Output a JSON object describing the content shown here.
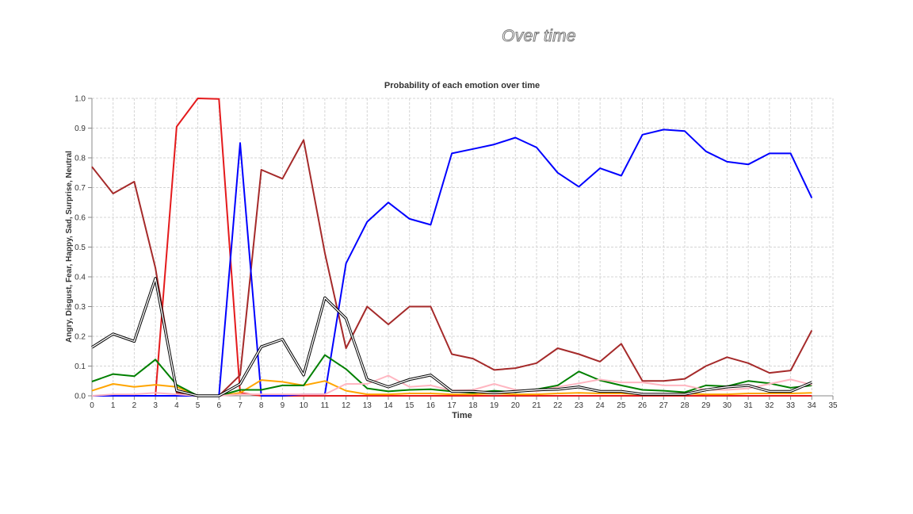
{
  "page": {
    "heading": "Over time"
  },
  "chart_data": {
    "type": "line",
    "title": "Probability of each emotion over time",
    "xlabel": "Time",
    "ylabel": "Angry, Disgust, Fear, Happy, Sad, Surprise, Neutral",
    "xlim": [
      0,
      35
    ],
    "ylim": [
      0,
      1
    ],
    "x_ticks": [
      0,
      1,
      2,
      3,
      4,
      5,
      6,
      7,
      8,
      9,
      10,
      11,
      12,
      13,
      14,
      15,
      16,
      17,
      18,
      19,
      20,
      21,
      22,
      23,
      24,
      25,
      26,
      27,
      28,
      29,
      30,
      31,
      32,
      33,
      34,
      35
    ],
    "y_ticks": [
      0.0,
      0.1,
      0.2,
      0.3,
      0.4,
      0.5,
      0.6,
      0.7,
      0.8,
      0.9,
      1.0
    ],
    "y_tick_labels": [
      "0.0",
      "0.1",
      "0.2",
      "0.3",
      "0.4",
      "0.5",
      "0.6",
      "0.7",
      "0.8",
      "0.9",
      "1.0"
    ],
    "grid": true,
    "x": [
      0,
      1,
      2,
      3,
      4,
      5,
      6,
      7,
      8,
      9,
      10,
      11,
      12,
      13,
      14,
      15,
      16,
      17,
      18,
      19,
      20,
      21,
      22,
      23,
      24,
      25,
      26,
      27,
      28,
      29,
      30,
      31,
      32,
      33,
      34
    ],
    "series": [
      {
        "color": "#e41a1c",
        "values": [
          0.0,
          0.0,
          0.0,
          0.0,
          0.905,
          1.0,
          0.998,
          0.01,
          0.0,
          0.0,
          0.0,
          0.0,
          0.0,
          0.0,
          0.0,
          0.0,
          0.0,
          0.0,
          0.0,
          0.0,
          0.0,
          0.0,
          0.0,
          0.0,
          0.0,
          0.0,
          0.0,
          0.0,
          0.0,
          0.0,
          0.0,
          0.0,
          0.0,
          0.0,
          0.0
        ]
      },
      {
        "color": "#a52a2a",
        "values": [
          0.77,
          0.68,
          0.72,
          0.43,
          0.01,
          0.0,
          0.0,
          0.07,
          0.76,
          0.73,
          0.86,
          0.48,
          0.16,
          0.3,
          0.24,
          0.3,
          0.3,
          0.14,
          0.125,
          0.087,
          0.093,
          0.11,
          0.16,
          0.14,
          0.115,
          0.175,
          0.05,
          0.05,
          0.057,
          0.1,
          0.13,
          0.11,
          0.077,
          0.085,
          0.22
        ]
      },
      {
        "color": "#0000ff",
        "values": [
          0.0,
          0.0,
          0.0,
          0.0,
          0.0,
          0.0,
          0.0,
          0.85,
          0.0,
          0.0,
          0.005,
          0.005,
          0.445,
          0.585,
          0.65,
          0.595,
          0.575,
          0.815,
          0.83,
          0.845,
          0.868,
          0.835,
          0.75,
          0.703,
          0.765,
          0.74,
          0.878,
          0.895,
          0.89,
          0.822,
          0.787,
          0.778,
          0.815,
          0.815,
          0.665
        ]
      },
      {
        "color": "#ffa500",
        "values": [
          0.017,
          0.04,
          0.03,
          0.037,
          0.03,
          0.0,
          0.0,
          0.01,
          0.053,
          0.047,
          0.035,
          0.05,
          0.017,
          0.005,
          0.005,
          0.008,
          0.008,
          0.005,
          0.005,
          0.008,
          0.005,
          0.005,
          0.008,
          0.01,
          0.008,
          0.008,
          0.005,
          0.005,
          0.008,
          0.005,
          0.005,
          0.008,
          0.008,
          0.008,
          0.01
        ]
      },
      {
        "color": "#008000",
        "values": [
          0.048,
          0.073,
          0.066,
          0.122,
          0.037,
          0.0,
          0.0,
          0.02,
          0.02,
          0.035,
          0.035,
          0.137,
          0.09,
          0.025,
          0.015,
          0.02,
          0.022,
          0.015,
          0.01,
          0.017,
          0.012,
          0.022,
          0.035,
          0.082,
          0.052,
          0.035,
          0.02,
          0.017,
          0.012,
          0.035,
          0.032,
          0.05,
          0.042,
          0.027,
          0.035
        ]
      },
      {
        "color": "#ffb6c1",
        "values": [
          0.0,
          0.005,
          0.005,
          0.01,
          0.005,
          0.0,
          0.0,
          0.005,
          0.005,
          0.005,
          0.005,
          0.005,
          0.04,
          0.04,
          0.068,
          0.03,
          0.035,
          0.018,
          0.02,
          0.04,
          0.02,
          0.015,
          0.03,
          0.042,
          0.055,
          0.045,
          0.045,
          0.035,
          0.035,
          0.02,
          0.02,
          0.025,
          0.04,
          0.055,
          0.037
        ]
      },
      {
        "color": "#000000",
        "outlined": true,
        "values": [
          0.163,
          0.208,
          0.183,
          0.395,
          0.018,
          0.0,
          0.0,
          0.04,
          0.165,
          0.19,
          0.07,
          0.33,
          0.26,
          0.055,
          0.03,
          0.055,
          0.07,
          0.015,
          0.015,
          0.01,
          0.015,
          0.02,
          0.022,
          0.03,
          0.015,
          0.015,
          0.005,
          0.005,
          0.005,
          0.02,
          0.03,
          0.035,
          0.015,
          0.015,
          0.045
        ]
      }
    ]
  }
}
